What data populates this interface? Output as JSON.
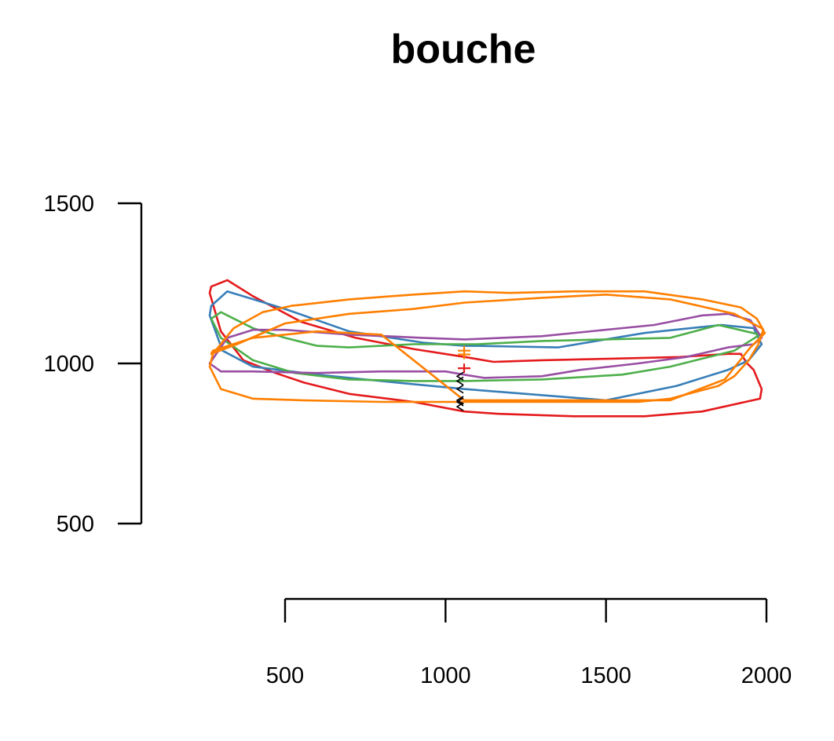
{
  "chart_data": {
    "type": "line",
    "title": "bouche",
    "xlabel": "",
    "ylabel": "",
    "xlim": [
      500,
      2000
    ],
    "ylim": [
      500,
      1500
    ],
    "x_ticks": [
      500,
      1000,
      1500,
      2000
    ],
    "y_ticks": [
      500,
      1000,
      1500
    ],
    "grid": false,
    "colors": {
      "red": "#E41A1C",
      "blue": "#377EB8",
      "green": "#4DAF4A",
      "purple": "#984EA3",
      "orange": "#FF7F00"
    },
    "series": [
      {
        "color": "#E41A1C",
        "x": [
          1058,
          1160,
          1400,
          1620,
          1800,
          1980,
          1985,
          1960,
          1940,
          1920,
          1880,
          1730,
          1520,
          1300,
          1150,
          1060,
          900,
          720,
          550,
          400,
          320,
          270,
          265,
          300,
          370,
          470,
          560,
          700,
          900,
          1058
        ],
        "y": [
          850,
          843,
          835,
          835,
          850,
          890,
          920,
          980,
          1000,
          1030,
          1030,
          1020,
          1015,
          1010,
          1005,
          1020,
          1045,
          1080,
          1130,
          1210,
          1260,
          1240,
          1220,
          1100,
          1010,
          970,
          940,
          905,
          880,
          850
        ]
      },
      {
        "color": "#377EB8",
        "x": [
          1058,
          1500,
          1720,
          1880,
          1945,
          1985,
          1960,
          1860,
          1620,
          1350,
          1100,
          1060,
          930,
          700,
          500,
          320,
          270,
          265,
          305,
          400,
          600,
          850,
          1058
        ],
        "y": [
          920,
          885,
          930,
          980,
          1010,
          1060,
          1110,
          1120,
          1095,
          1050,
          1055,
          1055,
          1065,
          1100,
          1170,
          1225,
          1180,
          1150,
          1040,
          990,
          965,
          940,
          920
        ]
      },
      {
        "color": "#4DAF4A",
        "x": [
          1058,
          1300,
          1550,
          1700,
          1900,
          1980,
          1850,
          1700,
          1500,
          1300,
          1100,
          1060,
          900,
          700,
          600,
          500,
          400,
          300,
          270,
          300,
          400,
          530,
          700,
          900,
          1058
        ],
        "y": [
          945,
          950,
          965,
          990,
          1040,
          1090,
          1120,
          1080,
          1075,
          1070,
          1060,
          1060,
          1060,
          1050,
          1055,
          1080,
          1110,
          1160,
          1140,
          1080,
          1010,
          970,
          950,
          945,
          945
        ]
      },
      {
        "color": "#984EA3",
        "x": [
          1058,
          1120,
          1300,
          1420,
          1600,
          1750,
          1880,
          1960,
          1985,
          1950,
          1880,
          1800,
          1650,
          1300,
          1060,
          930,
          700,
          500,
          400,
          320,
          265,
          300,
          400,
          600,
          800,
          1000,
          1058
        ],
        "y": [
          965,
          955,
          960,
          980,
          1000,
          1020,
          1050,
          1060,
          1080,
          1135,
          1155,
          1150,
          1120,
          1085,
          1075,
          1080,
          1090,
          1105,
          1105,
          1080,
          1000,
          975,
          975,
          970,
          975,
          975,
          965
        ]
      },
      {
        "color": "#FF7F00",
        "x": [
          1058,
          1600,
          1700,
          1850,
          1900,
          1945,
          1975,
          1990,
          1970,
          1920,
          1800,
          1620,
          1400,
          1200,
          1060,
          900,
          700,
          520,
          430,
          340,
          275,
          265,
          300,
          400,
          550,
          800,
          1058
        ],
        "y": [
          880,
          880,
          890,
          930,
          960,
          1010,
          1060,
          1105,
          1140,
          1175,
          1200,
          1225,
          1225,
          1220,
          1225,
          1215,
          1200,
          1180,
          1160,
          1110,
          1030,
          990,
          920,
          890,
          885,
          880,
          880
        ]
      },
      {
        "color": "#FF7F00",
        "x": [
          1058,
          1300,
          1500,
          1700,
          1870,
          1950,
          1995,
          1985,
          1900,
          1700,
          1500,
          1300,
          1060,
          900,
          700,
          500,
          350,
          270,
          275,
          400,
          600,
          800,
          1058
        ],
        "y": [
          885,
          885,
          885,
          885,
          950,
          1050,
          1095,
          1110,
          1155,
          1200,
          1215,
          1205,
          1190,
          1170,
          1155,
          1125,
          1060,
          1030,
          1040,
          1080,
          1100,
          1090,
          885
        ]
      }
    ],
    "markers": [
      {
        "color": "#E41A1C",
        "x": 1058,
        "y": 985
      },
      {
        "color": "#FF7F00",
        "x": 1058,
        "y": 1040
      },
      {
        "color": "#FF7F00",
        "x": 1058,
        "y": 1028
      }
    ]
  }
}
